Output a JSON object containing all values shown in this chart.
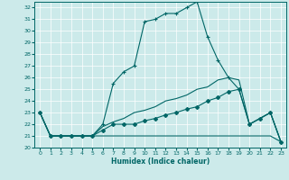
{
  "title": "",
  "xlabel": "Humidex (Indice chaleur)",
  "ylabel": "",
  "bg_color": "#cceaea",
  "line_color": "#006666",
  "grid_color": "#aacccc",
  "xlim": [
    -0.5,
    23.5
  ],
  "ylim": [
    20,
    32.5
  ],
  "yticks": [
    20,
    21,
    22,
    23,
    24,
    25,
    26,
    27,
    28,
    29,
    30,
    31,
    32
  ],
  "xticks": [
    0,
    1,
    2,
    3,
    4,
    5,
    6,
    7,
    8,
    9,
    10,
    11,
    12,
    13,
    14,
    15,
    16,
    17,
    18,
    19,
    20,
    21,
    22,
    23
  ],
  "s1_x": [
    0,
    1,
    2,
    3,
    4,
    5,
    6,
    7,
    8,
    9,
    10,
    11,
    12,
    13,
    14,
    15,
    16,
    17,
    18,
    19,
    20,
    21,
    22,
    23
  ],
  "s1_y": [
    23,
    21,
    21,
    21,
    21,
    21,
    22,
    25.5,
    26.5,
    27,
    30.8,
    31,
    31.5,
    31.5,
    32,
    32.5,
    29.5,
    27.5,
    26,
    25,
    22,
    22.5,
    23,
    20.5
  ],
  "s2_x": [
    0,
    1,
    2,
    3,
    4,
    5,
    6,
    7,
    8,
    9,
    10,
    11,
    12,
    13,
    14,
    15,
    16,
    17,
    18,
    19,
    20,
    21,
    22,
    23
  ],
  "s2_y": [
    23,
    21,
    21,
    21,
    21,
    21,
    21,
    21,
    21,
    21,
    21,
    21,
    21,
    21,
    21,
    21,
    21,
    21,
    21,
    21,
    21,
    21,
    21,
    20.5
  ],
  "s3_x": [
    0,
    1,
    2,
    3,
    4,
    5,
    6,
    7,
    8,
    9,
    10,
    11,
    12,
    13,
    14,
    15,
    16,
    17,
    18,
    19,
    20,
    21,
    22,
    23
  ],
  "s3_y": [
    23,
    21,
    21,
    21,
    21,
    21,
    21.5,
    22,
    22,
    22,
    22.3,
    22.5,
    22.8,
    23,
    23.3,
    23.5,
    24,
    24.3,
    24.8,
    25,
    22,
    22.5,
    23,
    20.5
  ],
  "s4_x": [
    0,
    1,
    2,
    3,
    4,
    5,
    6,
    7,
    8,
    9,
    10,
    11,
    12,
    13,
    14,
    15,
    16,
    17,
    18,
    19,
    20,
    21,
    22,
    23
  ],
  "s4_y": [
    23,
    21,
    21,
    21,
    21,
    21,
    21.8,
    22.2,
    22.5,
    23,
    23.2,
    23.5,
    24,
    24.2,
    24.5,
    25,
    25.2,
    25.8,
    26,
    25.8,
    22,
    22.5,
    23,
    20.5
  ]
}
